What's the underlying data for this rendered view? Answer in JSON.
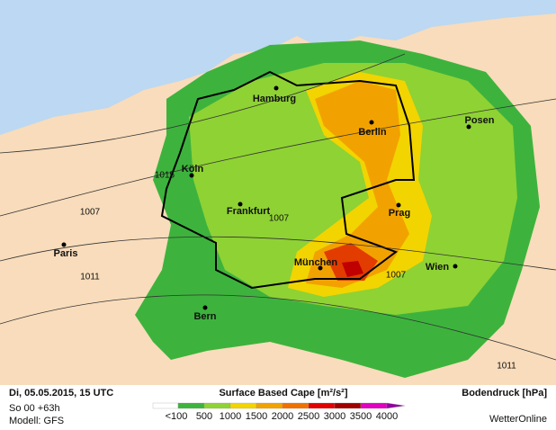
{
  "map": {
    "cities": [
      {
        "label": "Hamburg"
      },
      {
        "label": "Berlin"
      },
      {
        "label": "Posen"
      },
      {
        "label": "Köln"
      },
      {
        "label": "Frankfurt"
      },
      {
        "label": "Prag"
      },
      {
        "label": "Paris"
      },
      {
        "label": "München"
      },
      {
        "label": "Wien"
      },
      {
        "label": "Bern"
      }
    ],
    "isobars": [
      "1015",
      "1007",
      "1007",
      "1007",
      "1011",
      "1011"
    ]
  },
  "footer": {
    "date": "Di, 05.05.2015, 15 UTC",
    "run": "So 00 +63h",
    "model": "Modell: GFS",
    "legend_title": "Surface Based Cape [m²/s²]",
    "legend_labels": [
      "<100",
      "500",
      "1000",
      "1500",
      "2000",
      "2500",
      "3000",
      "3500",
      "4000"
    ],
    "pressure": "Bodendruck [hPa]",
    "brand": "WetterOnline"
  }
}
